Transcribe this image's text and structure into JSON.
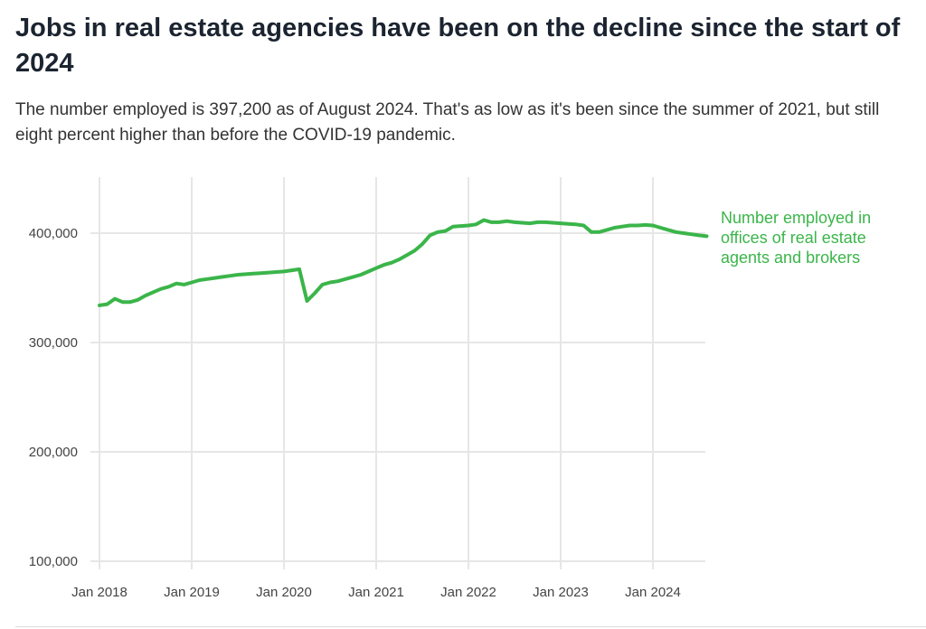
{
  "title": "Jobs in real estate agencies have been on the decline since the start of 2024",
  "subtitle": "The number employed is 397,200 as of August 2024. That's as low as it's been since the summer of 2021, but still eight percent higher than before the COVID-19 pandemic.",
  "colors": {
    "series": "#3bb54a",
    "grid": "#e6e6e6"
  },
  "chart_data": {
    "type": "line",
    "title": "Jobs in real estate agencies have been on the decline since the start of 2024",
    "xlabel": "",
    "ylabel": "",
    "start": "2018-01",
    "frequency": "monthly",
    "ylim": [
      100000,
      440000
    ],
    "yticks": [
      100000,
      200000,
      300000,
      400000
    ],
    "ytick_labels": [
      "100,000",
      "200,000",
      "300,000",
      "400,000"
    ],
    "xtick_labels": [
      "Jan 2018",
      "Jan 2019",
      "Jan 2020",
      "Jan 2021",
      "Jan 2022",
      "Jan 2023",
      "Jan 2024"
    ],
    "grid": true,
    "series": [
      {
        "name": "Number employed in offices of real estate agents and brokers",
        "label_lines": [
          "Number employed in",
          "offices of real estate",
          "agents and brokers"
        ],
        "values": [
          334000,
          335000,
          340000,
          337000,
          337000,
          339000,
          343000,
          346000,
          349000,
          351000,
          354000,
          353000,
          355000,
          357000,
          358000,
          359000,
          360000,
          361000,
          362000,
          362500,
          363000,
          363500,
          364000,
          364500,
          365000,
          366000,
          367000,
          338000,
          345000,
          353000,
          355000,
          356000,
          358000,
          360000,
          362000,
          365000,
          368000,
          371000,
          373000,
          376000,
          380000,
          384000,
          390000,
          398000,
          401000,
          402000,
          406000,
          406500,
          407000,
          408000,
          412000,
          410000,
          410000,
          411000,
          410000,
          409500,
          409000,
          410000,
          410000,
          409500,
          409000,
          408500,
          408000,
          407000,
          401000,
          401000,
          403000,
          405000,
          406000,
          407000,
          407000,
          407500,
          407000,
          405000,
          403000,
          401000,
          400000,
          399000,
          398000,
          397200
        ]
      }
    ]
  }
}
